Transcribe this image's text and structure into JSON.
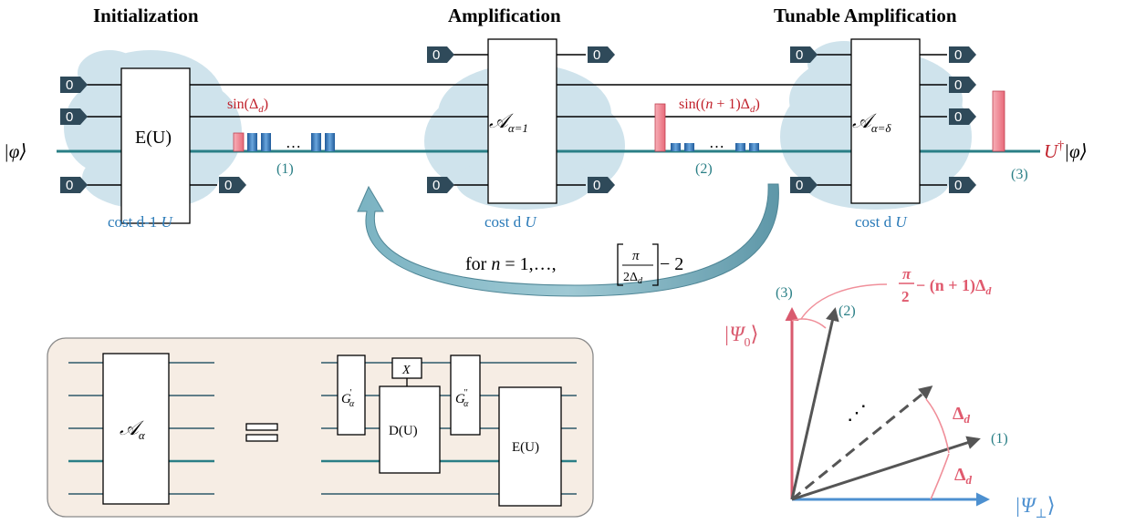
{
  "titles": {
    "initialization": "Initialization",
    "amplification": "Amplification",
    "tunable": "Tunable Amplification"
  },
  "zero": "0",
  "blocks": {
    "eu": "E(U)",
    "a1": "𝒜",
    "a1_sub": "α=1",
    "ad": "𝒜",
    "ad_sub": "α=δ"
  },
  "costs": {
    "init_prefix": "cost d-1 ",
    "amp_prefix": "cost d ",
    "tun_prefix": "cost d ",
    "unit": "U"
  },
  "amp_labels": {
    "sin1_pre": "sin(Δ",
    "sin1_sub": "d",
    "sin1_post": ")",
    "sin2_pre": "sin((",
    "sin2_n": "n",
    "sin2_mid": " + 1)Δ",
    "sin2_sub": "d",
    "sin2_post": ")"
  },
  "ellipsis": "…",
  "markers": {
    "m1": "(1)",
    "m2": "(2)",
    "m3": "(3)"
  },
  "psi_in": "|φ⟩",
  "psi_out_u": "U",
  "psi_out_dag": "†",
  "psi_out_rest": "|φ⟩",
  "loop": {
    "for": "for ",
    "n": "n",
    "eq": " = 1,…,",
    "pi": "π",
    "den_2": "2Δ",
    "den_sub": "d",
    "minus2": " − 2"
  },
  "inset": {
    "lhs_a": "𝒜",
    "lhs_sub": "α",
    "g1": "G",
    "g1_sup": "'",
    "g1_sub": "α",
    "x": "X",
    "du": "D(U)",
    "g2": "G",
    "g2_sup": "''",
    "g2_sub": "α",
    "eu": "E(U)"
  },
  "vec": {
    "angle_pi": "π",
    "angle_two": "2",
    "angle_rest": " − (n + 1)Δ",
    "angle_sub": "d",
    "delta1": "Δ",
    "delta1_sub": "d",
    "delta2": "Δ",
    "delta2_sub": "d",
    "psi0_bar": "|Ψ",
    "psi0_sub": "0",
    "psi0_end": "⟩",
    "psiperp_bar": "|Ψ",
    "psiperp_sub": "⊥",
    "psiperp_end": "⟩",
    "dots": "⋰"
  },
  "colors": {
    "wire": "#000000",
    "main_wire": "#2a7f86",
    "tag": "#2f4a5a",
    "cloud": "#cfe3ec",
    "red_text": "#c0202a",
    "pink": "#f08f9a",
    "bar_blue": "#2f6fb0",
    "arrow_fill": "#6aa5b5",
    "inset_bg": "#f6ede4",
    "vec_gray": "#555555",
    "psi0": "#d95a6e",
    "psiperp": "#4d90d0"
  }
}
